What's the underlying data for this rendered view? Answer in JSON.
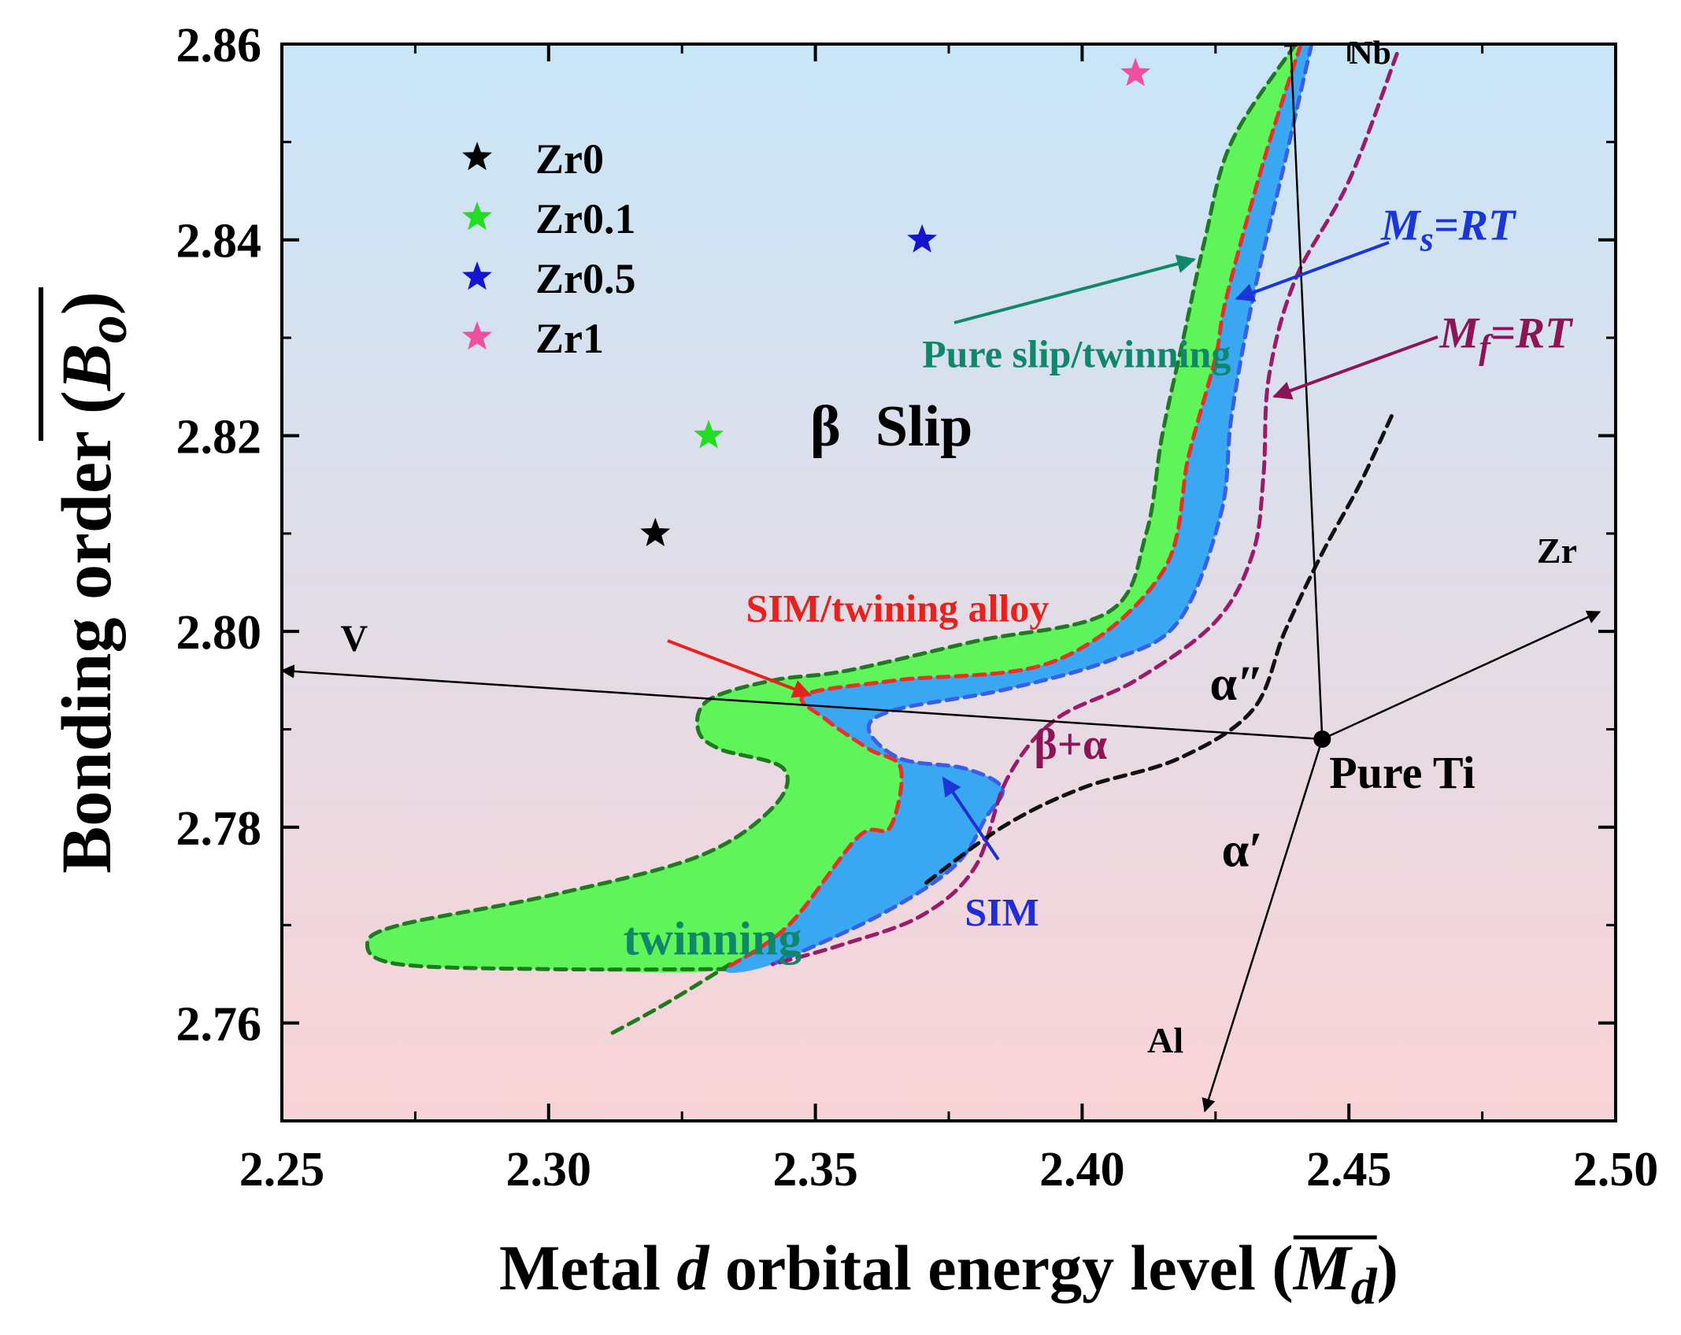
{
  "chart_data": {
    "type": "scatter",
    "title": "",
    "xlabel_parts": [
      "Metal ",
      "d",
      " orbital energy level (",
      "M",
      "d",
      ")"
    ],
    "ylabel_parts": [
      "Bonding order (",
      "B",
      "o",
      ")"
    ],
    "xlim": [
      2.25,
      2.5
    ],
    "ylim": [
      2.75,
      2.86
    ],
    "xticks": [
      2.25,
      2.3,
      2.35,
      2.4,
      2.45,
      2.5
    ],
    "xtick_labels": [
      "2.25",
      "2.30",
      "2.35",
      "2.40",
      "2.45",
      "2.50"
    ],
    "yticks": [
      2.76,
      2.78,
      2.8,
      2.82,
      2.84,
      2.86
    ],
    "ytick_labels": [
      "2.76",
      "2.78",
      "2.80",
      "2.82",
      "2.84",
      "2.86"
    ],
    "background_gradient": {
      "top": "#c8e6f8",
      "bottom": "#f9d3d6"
    },
    "series": [
      {
        "name": "Zr0",
        "x": [
          2.32
        ],
        "y": [
          2.81
        ],
        "color": "#000000",
        "marker": "star"
      },
      {
        "name": "Zr0.1",
        "x": [
          2.33
        ],
        "y": [
          2.82
        ],
        "color": "#22dd22",
        "marker": "star"
      },
      {
        "name": "Zr0.5",
        "x": [
          2.37
        ],
        "y": [
          2.84
        ],
        "color": "#1515d0",
        "marker": "star"
      },
      {
        "name": "Zr1",
        "x": [
          2.41
        ],
        "y": [
          2.857
        ],
        "color": "#ee4f9f",
        "marker": "star"
      }
    ],
    "legend": {
      "placement": "top-left",
      "entries": [
        "Zr0",
        "Zr0.1",
        "Zr0.5",
        "Zr1"
      ]
    },
    "regions": [
      {
        "name": "twinning",
        "fill": "#5ff55a",
        "outline": "#1f7a1f",
        "points": [
          [
            2.44,
            2.86
          ],
          [
            2.428,
            2.85
          ],
          [
            2.423,
            2.84
          ],
          [
            2.419,
            2.83
          ],
          [
            2.415,
            2.82
          ],
          [
            2.412,
            2.81
          ],
          [
            2.405,
            2.802
          ],
          [
            2.38,
            2.799
          ],
          [
            2.356,
            2.796
          ],
          [
            2.342,
            2.795
          ],
          [
            2.33,
            2.793
          ],
          [
            2.328,
            2.79
          ],
          [
            2.332,
            2.788
          ],
          [
            2.344,
            2.786
          ],
          [
            2.342,
            2.782
          ],
          [
            2.328,
            2.777
          ],
          [
            2.3,
            2.773
          ],
          [
            2.272,
            2.77
          ],
          [
            2.266,
            2.768
          ],
          [
            2.272,
            2.766
          ],
          [
            2.3,
            2.7655
          ],
          [
            2.333,
            2.7655
          ],
          [
            2.345,
            2.77
          ],
          [
            2.358,
            2.779
          ],
          [
            2.364,
            2.78
          ],
          [
            2.366,
            2.786
          ],
          [
            2.36,
            2.788
          ],
          [
            2.352,
            2.791
          ],
          [
            2.348,
            2.7935
          ],
          [
            2.365,
            2.795
          ],
          [
            2.395,
            2.797
          ],
          [
            2.415,
            2.806
          ],
          [
            2.42,
            2.818
          ],
          [
            2.425,
            2.828
          ],
          [
            2.427,
            2.834
          ],
          [
            2.434,
            2.848
          ],
          [
            2.441,
            2.86
          ]
        ]
      },
      {
        "name": "SIM",
        "fill": "#39a7f2",
        "outline": "#3a5fe6",
        "points": [
          [
            2.443,
            2.86
          ],
          [
            2.438,
            2.848
          ],
          [
            2.432,
            2.834
          ],
          [
            2.428,
            2.822
          ],
          [
            2.426,
            2.812
          ],
          [
            2.418,
            2.801
          ],
          [
            2.405,
            2.797
          ],
          [
            2.385,
            2.794
          ],
          [
            2.365,
            2.792
          ],
          [
            2.36,
            2.79
          ],
          [
            2.366,
            2.787
          ],
          [
            2.378,
            2.786
          ],
          [
            2.385,
            2.784
          ],
          [
            2.382,
            2.781
          ],
          [
            2.376,
            2.776
          ],
          [
            2.362,
            2.771
          ],
          [
            2.342,
            2.766
          ],
          [
            2.333,
            2.7655
          ],
          [
            2.345,
            2.77
          ],
          [
            2.358,
            2.779
          ],
          [
            2.364,
            2.78
          ],
          [
            2.366,
            2.786
          ],
          [
            2.36,
            2.788
          ],
          [
            2.352,
            2.791
          ],
          [
            2.348,
            2.7935
          ],
          [
            2.365,
            2.795
          ],
          [
            2.395,
            2.797
          ],
          [
            2.415,
            2.806
          ],
          [
            2.42,
            2.818
          ],
          [
            2.425,
            2.828
          ],
          [
            2.427,
            2.834
          ],
          [
            2.434,
            2.848
          ],
          [
            2.441,
            2.86
          ]
        ]
      }
    ],
    "curves": [
      {
        "name": "green-tail",
        "color": "#1f7a1f",
        "style": "dashed",
        "points": [
          [
            2.312,
            2.759
          ],
          [
            2.322,
            2.762
          ],
          [
            2.334,
            2.766
          ]
        ]
      },
      {
        "name": "Ms=RT",
        "color": "#3a5fe6",
        "style": "dashed",
        "points": [
          [
            2.443,
            2.86
          ],
          [
            2.438,
            2.848
          ],
          [
            2.432,
            2.834
          ],
          [
            2.428,
            2.822
          ],
          [
            2.426,
            2.812
          ],
          [
            2.418,
            2.801
          ],
          [
            2.405,
            2.797
          ],
          [
            2.385,
            2.794
          ],
          [
            2.365,
            2.792
          ],
          [
            2.36,
            2.79
          ],
          [
            2.366,
            2.787
          ],
          [
            2.378,
            2.786
          ],
          [
            2.385,
            2.784
          ],
          [
            2.382,
            2.781
          ],
          [
            2.376,
            2.776
          ],
          [
            2.362,
            2.771
          ],
          [
            2.342,
            2.766
          ]
        ]
      },
      {
        "name": "SIM/twining alloy boundary",
        "color": "#e8312b",
        "style": "dashed",
        "points": [
          [
            2.441,
            2.86
          ],
          [
            2.434,
            2.848
          ],
          [
            2.427,
            2.834
          ],
          [
            2.425,
            2.828
          ],
          [
            2.42,
            2.818
          ],
          [
            2.415,
            2.806
          ],
          [
            2.395,
            2.797
          ],
          [
            2.365,
            2.795
          ],
          [
            2.348,
            2.7935
          ],
          [
            2.352,
            2.791
          ],
          [
            2.36,
            2.788
          ],
          [
            2.366,
            2.786
          ],
          [
            2.364,
            2.78
          ],
          [
            2.358,
            2.779
          ],
          [
            2.345,
            2.77
          ],
          [
            2.333,
            2.7655
          ]
        ]
      },
      {
        "name": "Mf=RT",
        "color": "#9b1b6a",
        "style": "dashed",
        "points": [
          [
            2.459,
            2.859
          ],
          [
            2.45,
            2.846
          ],
          [
            2.44,
            2.836
          ],
          [
            2.435,
            2.826
          ],
          [
            2.434,
            2.816
          ],
          [
            2.432,
            2.808
          ],
          [
            2.425,
            2.801
          ],
          [
            2.41,
            2.795
          ],
          [
            2.395,
            2.791
          ],
          [
            2.386,
            2.785
          ],
          [
            2.38,
            2.776
          ],
          [
            2.37,
            2.771
          ],
          [
            2.355,
            2.768
          ],
          [
            2.342,
            2.766
          ]
        ]
      },
      {
        "name": "alpha-boundary",
        "color": "#111111",
        "style": "dashed",
        "points": [
          [
            2.458,
            2.822
          ],
          [
            2.452,
            2.815
          ],
          [
            2.445,
            2.808
          ],
          [
            2.438,
            2.8
          ],
          [
            2.432,
            2.792
          ],
          [
            2.418,
            2.787
          ],
          [
            2.4,
            2.784
          ],
          [
            2.385,
            2.78
          ],
          [
            2.37,
            2.774
          ]
        ]
      }
    ],
    "vectors": [
      {
        "label": "V",
        "from": [
          2.445,
          2.789
        ],
        "to": [
          2.25,
          2.796
        ]
      },
      {
        "label": "Nb",
        "from": [
          2.445,
          2.789
        ],
        "to": [
          2.439,
          2.861
        ]
      },
      {
        "label": "Zr",
        "from": [
          2.445,
          2.789
        ],
        "to": [
          2.497,
          2.802
        ]
      },
      {
        "label": "Al",
        "from": [
          2.445,
          2.789
        ],
        "to": [
          2.423,
          2.751
        ]
      }
    ],
    "origin_point": {
      "label": "Pure Ti",
      "x": 2.445,
      "y": 2.789
    },
    "annotations": {
      "beta_slip": {
        "greek": "β",
        "text": "Slip",
        "x": 2.349,
        "y": 2.819
      },
      "pure_slip_twinning": {
        "text": "Pure slip/twinning",
        "x": 2.37,
        "y": 2.827,
        "color": "#11876a",
        "arrow_to": [
          2.421,
          2.838
        ]
      },
      "ms_rt": {
        "letter": "M",
        "sub": "s",
        "rest": "=RT",
        "x": 2.456,
        "y": 2.84,
        "color": "#1a35d8",
        "arrow_to": [
          2.429,
          2.834
        ]
      },
      "mf_rt": {
        "letter": "M",
        "sub": "f",
        "rest": "=RT",
        "x": 2.467,
        "y": 2.829,
        "color": "#8e1458",
        "arrow_to": [
          2.436,
          2.824
        ]
      },
      "sim_twining_alloy": {
        "text": "SIM/twining alloy",
        "x": 2.337,
        "y": 2.801,
        "color": "#e8211e",
        "arrow_to": [
          2.349,
          2.7935
        ]
      },
      "sim": {
        "text": "SIM",
        "x": 2.378,
        "y": 2.77,
        "color": "#1e2dd6",
        "arrow_to": [
          2.374,
          2.785
        ]
      },
      "twinning": {
        "text": "twinning",
        "x": 2.314,
        "y": 2.767,
        "color": "#11876a"
      },
      "beta_alpha": {
        "text": "β+α",
        "x": 2.391,
        "y": 2.787,
        "color": "#8e1458"
      },
      "alpha_double_prime": {
        "text": "α″",
        "x": 2.429,
        "y": 2.793
      },
      "alpha_prime": {
        "text": "α′",
        "x": 2.43,
        "y": 2.776
      },
      "v": {
        "text": "V",
        "x": 2.261,
        "y": 2.798
      },
      "nb": {
        "text": "Nb",
        "x": 2.45,
        "y": 2.858
      },
      "zr": {
        "text": "Zr",
        "x": 2.489,
        "y": 2.807
      },
      "al": {
        "text": "Al",
        "x": 2.419,
        "y": 2.757
      },
      "pure_ti": {
        "text": "Pure Ti",
        "x": 2.46,
        "y": 2.784
      }
    }
  }
}
